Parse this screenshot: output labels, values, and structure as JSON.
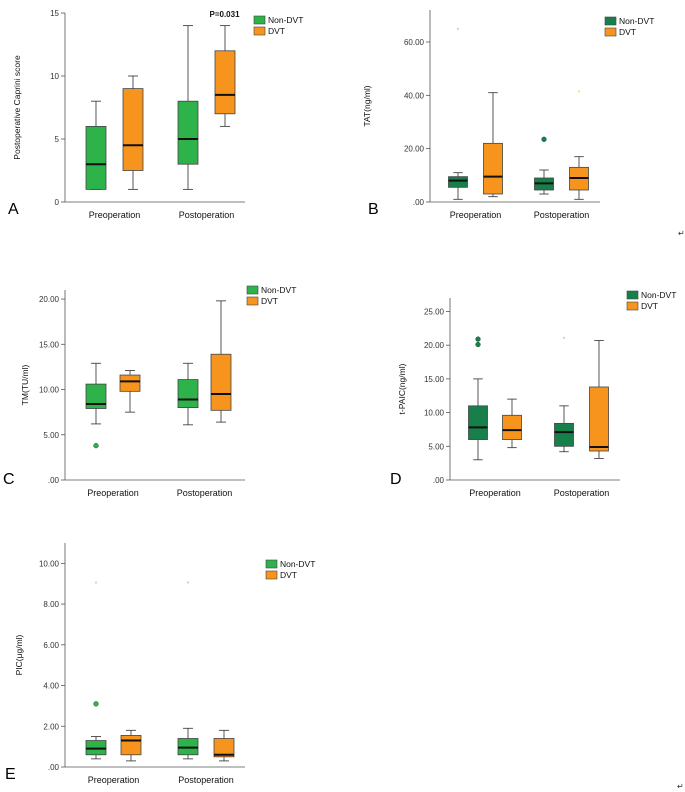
{
  "figure": {
    "return_marks": [
      "↵",
      "↵"
    ]
  },
  "colors": {
    "non_dvt_light": "#2db34a",
    "non_dvt_dark": "#17804a",
    "dvt": "#f7941d"
  },
  "chart_data": [
    {
      "panel": "A",
      "type": "boxplot",
      "ylabel": "Postoperative Caprini score",
      "ylim": [
        0,
        15
      ],
      "yticks": [
        0,
        5,
        10,
        15
      ],
      "tick_labels": [
        "0",
        "5",
        "10",
        "15"
      ],
      "categories": [
        "Preoperation",
        "Postoperation"
      ],
      "legend": [
        "Non-DVT",
        "DVT"
      ],
      "legend_position": "top-right",
      "non_dvt_color": "light",
      "annotations": [
        {
          "text": "P=0.031",
          "category": 1,
          "y": 14.7
        }
      ],
      "series": [
        {
          "name": "Non-DVT",
          "boxes": [
            {
              "min": 1,
              "q1": 1,
              "median": 3,
              "q3": 6,
              "max": 8,
              "outliers": []
            },
            {
              "min": 1,
              "q1": 3,
              "median": 5,
              "q3": 8,
              "max": 14,
              "outliers": []
            }
          ]
        },
        {
          "name": "DVT",
          "boxes": [
            {
              "min": 1,
              "q1": 2.5,
              "median": 4.5,
              "q3": 9,
              "max": 10,
              "outliers": []
            },
            {
              "min": 6,
              "q1": 7,
              "median": 8.5,
              "q3": 12,
              "max": 14,
              "outliers": []
            }
          ]
        }
      ]
    },
    {
      "panel": "B",
      "type": "boxplot",
      "ylabel": "TAT(ng/ml)",
      "ylim": [
        0,
        72
      ],
      "yticks": [
        0,
        20,
        40,
        60
      ],
      "tick_labels": [
        ".00",
        "20.00",
        "40.00",
        "60.00"
      ],
      "categories": [
        "Preoperation",
        "Postoperation"
      ],
      "legend": [
        "Non-DVT",
        "DVT"
      ],
      "legend_position": "top-right",
      "non_dvt_color": "dark",
      "annotations": [],
      "series": [
        {
          "name": "Non-DVT",
          "boxes": [
            {
              "min": 1,
              "q1": 5.5,
              "median": 8,
              "q3": 9.5,
              "max": 11,
              "outliers": [
                {
                  "v": 64.5,
                  "s": "star"
                }
              ]
            },
            {
              "min": 3,
              "q1": 4.5,
              "median": 7,
              "q3": 9,
              "max": 12,
              "outliers": [
                {
                  "v": 23.5,
                  "s": "circle"
                }
              ]
            }
          ]
        },
        {
          "name": "DVT",
          "boxes": [
            {
              "min": 2,
              "q1": 3,
              "median": 9.5,
              "q3": 22,
              "max": 41,
              "outliers": []
            },
            {
              "min": 1,
              "q1": 4.5,
              "median": 9,
              "q3": 13,
              "max": 17,
              "outliers": [
                {
                  "v": 41,
                  "s": "star"
                }
              ]
            }
          ]
        }
      ]
    },
    {
      "panel": "C",
      "type": "boxplot",
      "ylabel": "TM(TU/ml)",
      "ylim": [
        0,
        21
      ],
      "yticks": [
        0,
        5,
        10,
        15,
        20
      ],
      "tick_labels": [
        ".00",
        "5.00",
        "10.00",
        "15.00",
        "20.00"
      ],
      "categories": [
        "Preoperation",
        "Postoperation"
      ],
      "legend": [
        "Non-DVT",
        "DVT"
      ],
      "legend_position": "top-right",
      "non_dvt_color": "light",
      "annotations": [],
      "series": [
        {
          "name": "Non-DVT",
          "boxes": [
            {
              "min": 6.2,
              "q1": 7.9,
              "median": 8.4,
              "q3": 10.6,
              "max": 12.9,
              "outliers": [
                {
                  "v": 3.8,
                  "s": "circle"
                }
              ]
            },
            {
              "min": 6.1,
              "q1": 8,
              "median": 8.9,
              "q3": 11.1,
              "max": 12.9,
              "outliers": []
            }
          ]
        },
        {
          "name": "DVT",
          "boxes": [
            {
              "min": 7.5,
              "q1": 9.8,
              "median": 10.9,
              "q3": 11.6,
              "max": 12.1,
              "outliers": []
            },
            {
              "min": 6.4,
              "q1": 7.7,
              "median": 9.5,
              "q3": 13.9,
              "max": 19.8,
              "outliers": []
            }
          ]
        }
      ]
    },
    {
      "panel": "D",
      "type": "boxplot",
      "ylabel": "t-PAIC(ng/ml)",
      "ylim": [
        0,
        27
      ],
      "yticks": [
        0,
        5,
        10,
        15,
        20,
        25
      ],
      "tick_labels": [
        ".00",
        "5.00",
        "10.00",
        "15.00",
        "20.00",
        "25.00"
      ],
      "categories": [
        "Preoperation",
        "Postoperation"
      ],
      "legend": [
        "Non-DVT",
        "DVT"
      ],
      "legend_position": "top-right",
      "non_dvt_color": "dark",
      "annotations": [],
      "series": [
        {
          "name": "Non-DVT",
          "boxes": [
            {
              "min": 3,
              "q1": 6,
              "median": 7.8,
              "q3": 11,
              "max": 15,
              "outliers": [
                {
                  "v": 20.9,
                  "s": "circle"
                },
                {
                  "v": 20.1,
                  "s": "circle"
                }
              ]
            },
            {
              "min": 4.2,
              "q1": 5,
              "median": 7.1,
              "q3": 8.4,
              "max": 11,
              "outliers": [
                {
                  "v": 20.9,
                  "s": "star"
                }
              ]
            }
          ]
        },
        {
          "name": "DVT",
          "boxes": [
            {
              "min": 4.8,
              "q1": 6,
              "median": 7.4,
              "q3": 9.6,
              "max": 12,
              "outliers": []
            },
            {
              "min": 3.2,
              "q1": 4.3,
              "median": 4.9,
              "q3": 13.8,
              "max": 20.7,
              "outliers": []
            }
          ]
        }
      ]
    },
    {
      "panel": "E",
      "type": "boxplot",
      "ylabel": "PIC(μg/ml)",
      "ylim": [
        0,
        11
      ],
      "yticks": [
        0,
        2,
        4,
        6,
        8,
        10
      ],
      "tick_labels": [
        ".00",
        "2.00",
        "4.00",
        "6.00",
        "8.00",
        "10.00"
      ],
      "categories": [
        "Preoperation",
        "Postoperation"
      ],
      "legend": [
        "Non-DVT",
        "DVT"
      ],
      "legend_position": "top-right",
      "non_dvt_color": "light",
      "annotations": [],
      "series": [
        {
          "name": "Non-DVT",
          "boxes": [
            {
              "min": 0.4,
              "q1": 0.6,
              "median": 0.9,
              "q3": 1.3,
              "max": 1.5,
              "outliers": [
                {
                  "v": 9.0,
                  "s": "star"
                },
                {
                  "v": 3.1,
                  "s": "circle"
                }
              ]
            },
            {
              "min": 0.4,
              "q1": 0.6,
              "median": 0.95,
              "q3": 1.4,
              "max": 1.9,
              "outliers": [
                {
                  "v": 9.0,
                  "s": "star"
                }
              ]
            }
          ]
        },
        {
          "name": "DVT",
          "boxes": [
            {
              "min": 0.3,
              "q1": 0.6,
              "median": 1.3,
              "q3": 1.55,
              "max": 1.8,
              "outliers": []
            },
            {
              "min": 0.3,
              "q1": 0.5,
              "median": 0.6,
              "q3": 1.4,
              "max": 1.8,
              "outliers": []
            }
          ]
        }
      ]
    }
  ]
}
